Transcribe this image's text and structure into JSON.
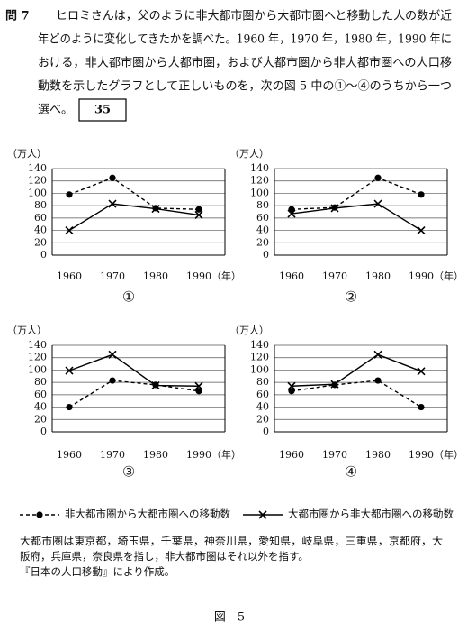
{
  "question": {
    "number": "問 7",
    "lines": [
      "ヒロミさんは，父のように非大都市圏から大都市圏へと移動した人の数が近",
      "年どのように変化してきたかを調べた。1960 年，1970 年，1980 年，1990 年に",
      "おける，非大都市圏から大都市圏，および大都市圏から非大都市圏への人口移",
      "動数を示したグラフとして正しいものを，次の図 5 中の①～④のうちから一つ",
      "選べ。"
    ],
    "answer_box": "35"
  },
  "chart_data": [
    {
      "type": "line",
      "label": "①",
      "y_label": "（万人）",
      "x_label": "（年）",
      "categories": [
        "1960",
        "1970",
        "1980",
        "1990"
      ],
      "ylim": [
        0,
        140
      ],
      "yticks": [
        0,
        20,
        40,
        60,
        80,
        100,
        120,
        140
      ],
      "grid": true,
      "series": [
        {
          "style": "dashed-dot",
          "color": "#000000",
          "values": [
            98,
            125,
            76,
            74
          ]
        },
        {
          "style": "solid-x",
          "color": "#000000",
          "values": [
            40,
            83,
            75,
            65
          ]
        }
      ]
    },
    {
      "type": "line",
      "label": "②",
      "y_label": "（万人）",
      "x_label": "（年）",
      "categories": [
        "1960",
        "1970",
        "1980",
        "1990"
      ],
      "ylim": [
        0,
        140
      ],
      "yticks": [
        0,
        20,
        40,
        60,
        80,
        100,
        120,
        140
      ],
      "grid": true,
      "series": [
        {
          "style": "dashed-dot",
          "color": "#000000",
          "values": [
            74,
            77,
            125,
            98
          ]
        },
        {
          "style": "solid-x",
          "color": "#000000",
          "values": [
            67,
            76,
            83,
            40
          ]
        }
      ]
    },
    {
      "type": "line",
      "label": "③",
      "y_label": "（万人）",
      "x_label": "（年）",
      "categories": [
        "1960",
        "1970",
        "1980",
        "1990"
      ],
      "ylim": [
        0,
        140
      ],
      "yticks": [
        0,
        20,
        40,
        60,
        80,
        100,
        120,
        140
      ],
      "grid": true,
      "series": [
        {
          "style": "dashed-dot",
          "color": "#000000",
          "values": [
            40,
            83,
            76,
            66
          ]
        },
        {
          "style": "solid-x",
          "color": "#000000",
          "values": [
            99,
            125,
            75,
            74
          ]
        }
      ]
    },
    {
      "type": "line",
      "label": "④",
      "y_label": "（万人）",
      "x_label": "（年）",
      "categories": [
        "1960",
        "1970",
        "1980",
        "1990"
      ],
      "ylim": [
        0,
        140
      ],
      "yticks": [
        0,
        20,
        40,
        60,
        80,
        100,
        120,
        140
      ],
      "grid": true,
      "series": [
        {
          "style": "dashed-dot",
          "color": "#000000",
          "values": [
            66,
            76,
            83,
            40
          ]
        },
        {
          "style": "solid-x",
          "color": "#000000",
          "values": [
            74,
            77,
            125,
            98
          ]
        }
      ]
    }
  ],
  "legend": [
    {
      "name": "非大都市圏から大都市圏への移動数",
      "style": "dashed-dot"
    },
    {
      "name": "大都市圏から非大都市圏への移動数",
      "style": "solid-x"
    }
  ],
  "notes": [
    "大都市圏は東京都，埼玉県，千葉県，神奈川県，愛知県，岐阜県，三重県，京都府，大",
    "阪府，兵庫県，奈良県を指し，非大都市圏はそれ以外を指す。",
    "『日本の人口移動』により作成。"
  ],
  "figure_label": "図　5"
}
